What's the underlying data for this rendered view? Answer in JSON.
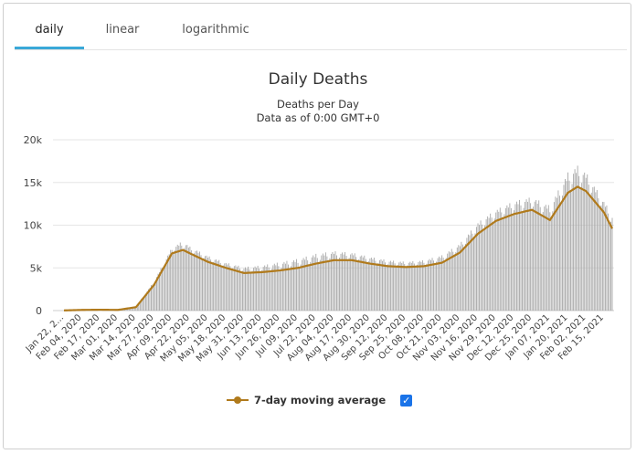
{
  "tabs": [
    {
      "label": "daily",
      "active": true
    },
    {
      "label": "linear",
      "active": false
    },
    {
      "label": "logarithmic",
      "active": false
    }
  ],
  "legend": {
    "label": "7-day moving average",
    "checked": true,
    "color": "#b07a1c"
  },
  "chart_data": {
    "type": "bar",
    "title": "Daily Deaths",
    "subtitle": "Deaths per Day",
    "subtitle2": "Data as of 0:00 GMT+0",
    "xlabel": "",
    "ylabel": "",
    "ylim": [
      0,
      20000
    ],
    "y_ticks": [
      0,
      5000,
      10000,
      15000,
      20000
    ],
    "y_tick_labels": [
      "0",
      "5k",
      "10k",
      "15k",
      "20k"
    ],
    "x_tick_labels": [
      "Jan 22, 2...",
      "Feb 04, 2020",
      "Feb 17, 2020",
      "Mar 01, 2020",
      "Mar 14, 2020",
      "Mar 27, 2020",
      "Apr 09, 2020",
      "Apr 22, 2020",
      "May 05, 2020",
      "May 18, 2020",
      "May 31, 2020",
      "Jun 13, 2020",
      "Jun 26, 2020",
      "Jul 09, 2020",
      "Jul 22, 2020",
      "Aug 04, 2020",
      "Aug 17, 2020",
      "Aug 30, 2020",
      "Sep 12, 2020",
      "Sep 25, 2020",
      "Oct 08, 2020",
      "Oct 21, 2020",
      "Nov 03, 2020",
      "Nov 16, 2020",
      "Nov 29, 2020",
      "Dec 12, 2020",
      "Dec 25, 2020",
      "Jan 07, 2021",
      "Jan 20, 2021",
      "Feb 02, 2021",
      "Feb 15, 2021"
    ],
    "bar_color": "#a9a9a9",
    "line_color": "#b07a1c",
    "grid": true,
    "legend_position": "bottom-center",
    "series": [
      {
        "name": "7-day moving average",
        "type": "line",
        "x": [
          "Jan 22, 2020",
          "Feb 04, 2020",
          "Feb 17, 2020",
          "Mar 01, 2020",
          "Mar 14, 2020",
          "Mar 27, 2020",
          "Apr 09, 2020",
          "Apr 17, 2020",
          "Apr 22, 2020",
          "May 05, 2020",
          "May 18, 2020",
          "May 31, 2020",
          "Jun 13, 2020",
          "Jun 26, 2020",
          "Jul 09, 2020",
          "Jul 22, 2020",
          "Aug 04, 2020",
          "Aug 17, 2020",
          "Aug 30, 2020",
          "Sep 12, 2020",
          "Sep 25, 2020",
          "Oct 08, 2020",
          "Oct 21, 2020",
          "Nov 03, 2020",
          "Nov 16, 2020",
          "Nov 29, 2020",
          "Dec 12, 2020",
          "Dec 25, 2020",
          "Jan 07, 2021",
          "Jan 20, 2021",
          "Jan 27, 2021",
          "Feb 02, 2021",
          "Feb 15, 2021",
          "Feb 21, 2021"
        ],
        "values": [
          20,
          80,
          100,
          80,
          400,
          3000,
          6700,
          7100,
          6700,
          5700,
          5000,
          4400,
          4500,
          4700,
          5000,
          5500,
          5900,
          5900,
          5500,
          5200,
          5100,
          5200,
          5600,
          6800,
          9000,
          10500,
          11300,
          11800,
          10600,
          13800,
          14500,
          14000,
          11500,
          9600
        ]
      },
      {
        "name": "",
        "type": "bar",
        "x": [
          "Jan 22, 2020",
          "Feb 04, 2020",
          "Feb 17, 2020",
          "Mar 01, 2020",
          "Mar 14, 2020",
          "Mar 27, 2020",
          "Apr 09, 2020",
          "Apr 17, 2020",
          "Apr 22, 2020",
          "May 05, 2020",
          "May 18, 2020",
          "May 31, 2020",
          "Jun 13, 2020",
          "Jun 26, 2020",
          "Jul 09, 2020",
          "Jul 22, 2020",
          "Aug 04, 2020",
          "Aug 17, 2020",
          "Aug 30, 2020",
          "Sep 12, 2020",
          "Sep 25, 2020",
          "Oct 08, 2020",
          "Oct 21, 2020",
          "Nov 03, 2020",
          "Nov 16, 2020",
          "Nov 29, 2020",
          "Dec 12, 2020",
          "Dec 25, 2020",
          "Jan 07, 2021",
          "Jan 20, 2021",
          "Jan 27, 2021",
          "Feb 02, 2021",
          "Feb 15, 2021",
          "Feb 21, 2021"
        ],
        "values": [
          20,
          100,
          120,
          100,
          500,
          3500,
          7500,
          8300,
          7600,
          6500,
          5700,
          5200,
          5400,
          5800,
          6200,
          6800,
          7100,
          6900,
          6400,
          6000,
          5800,
          6000,
          6600,
          8000,
          10500,
          12000,
          13000,
          13500,
          12500,
          16500,
          17300,
          16500,
          13000,
          11500
        ]
      }
    ]
  }
}
